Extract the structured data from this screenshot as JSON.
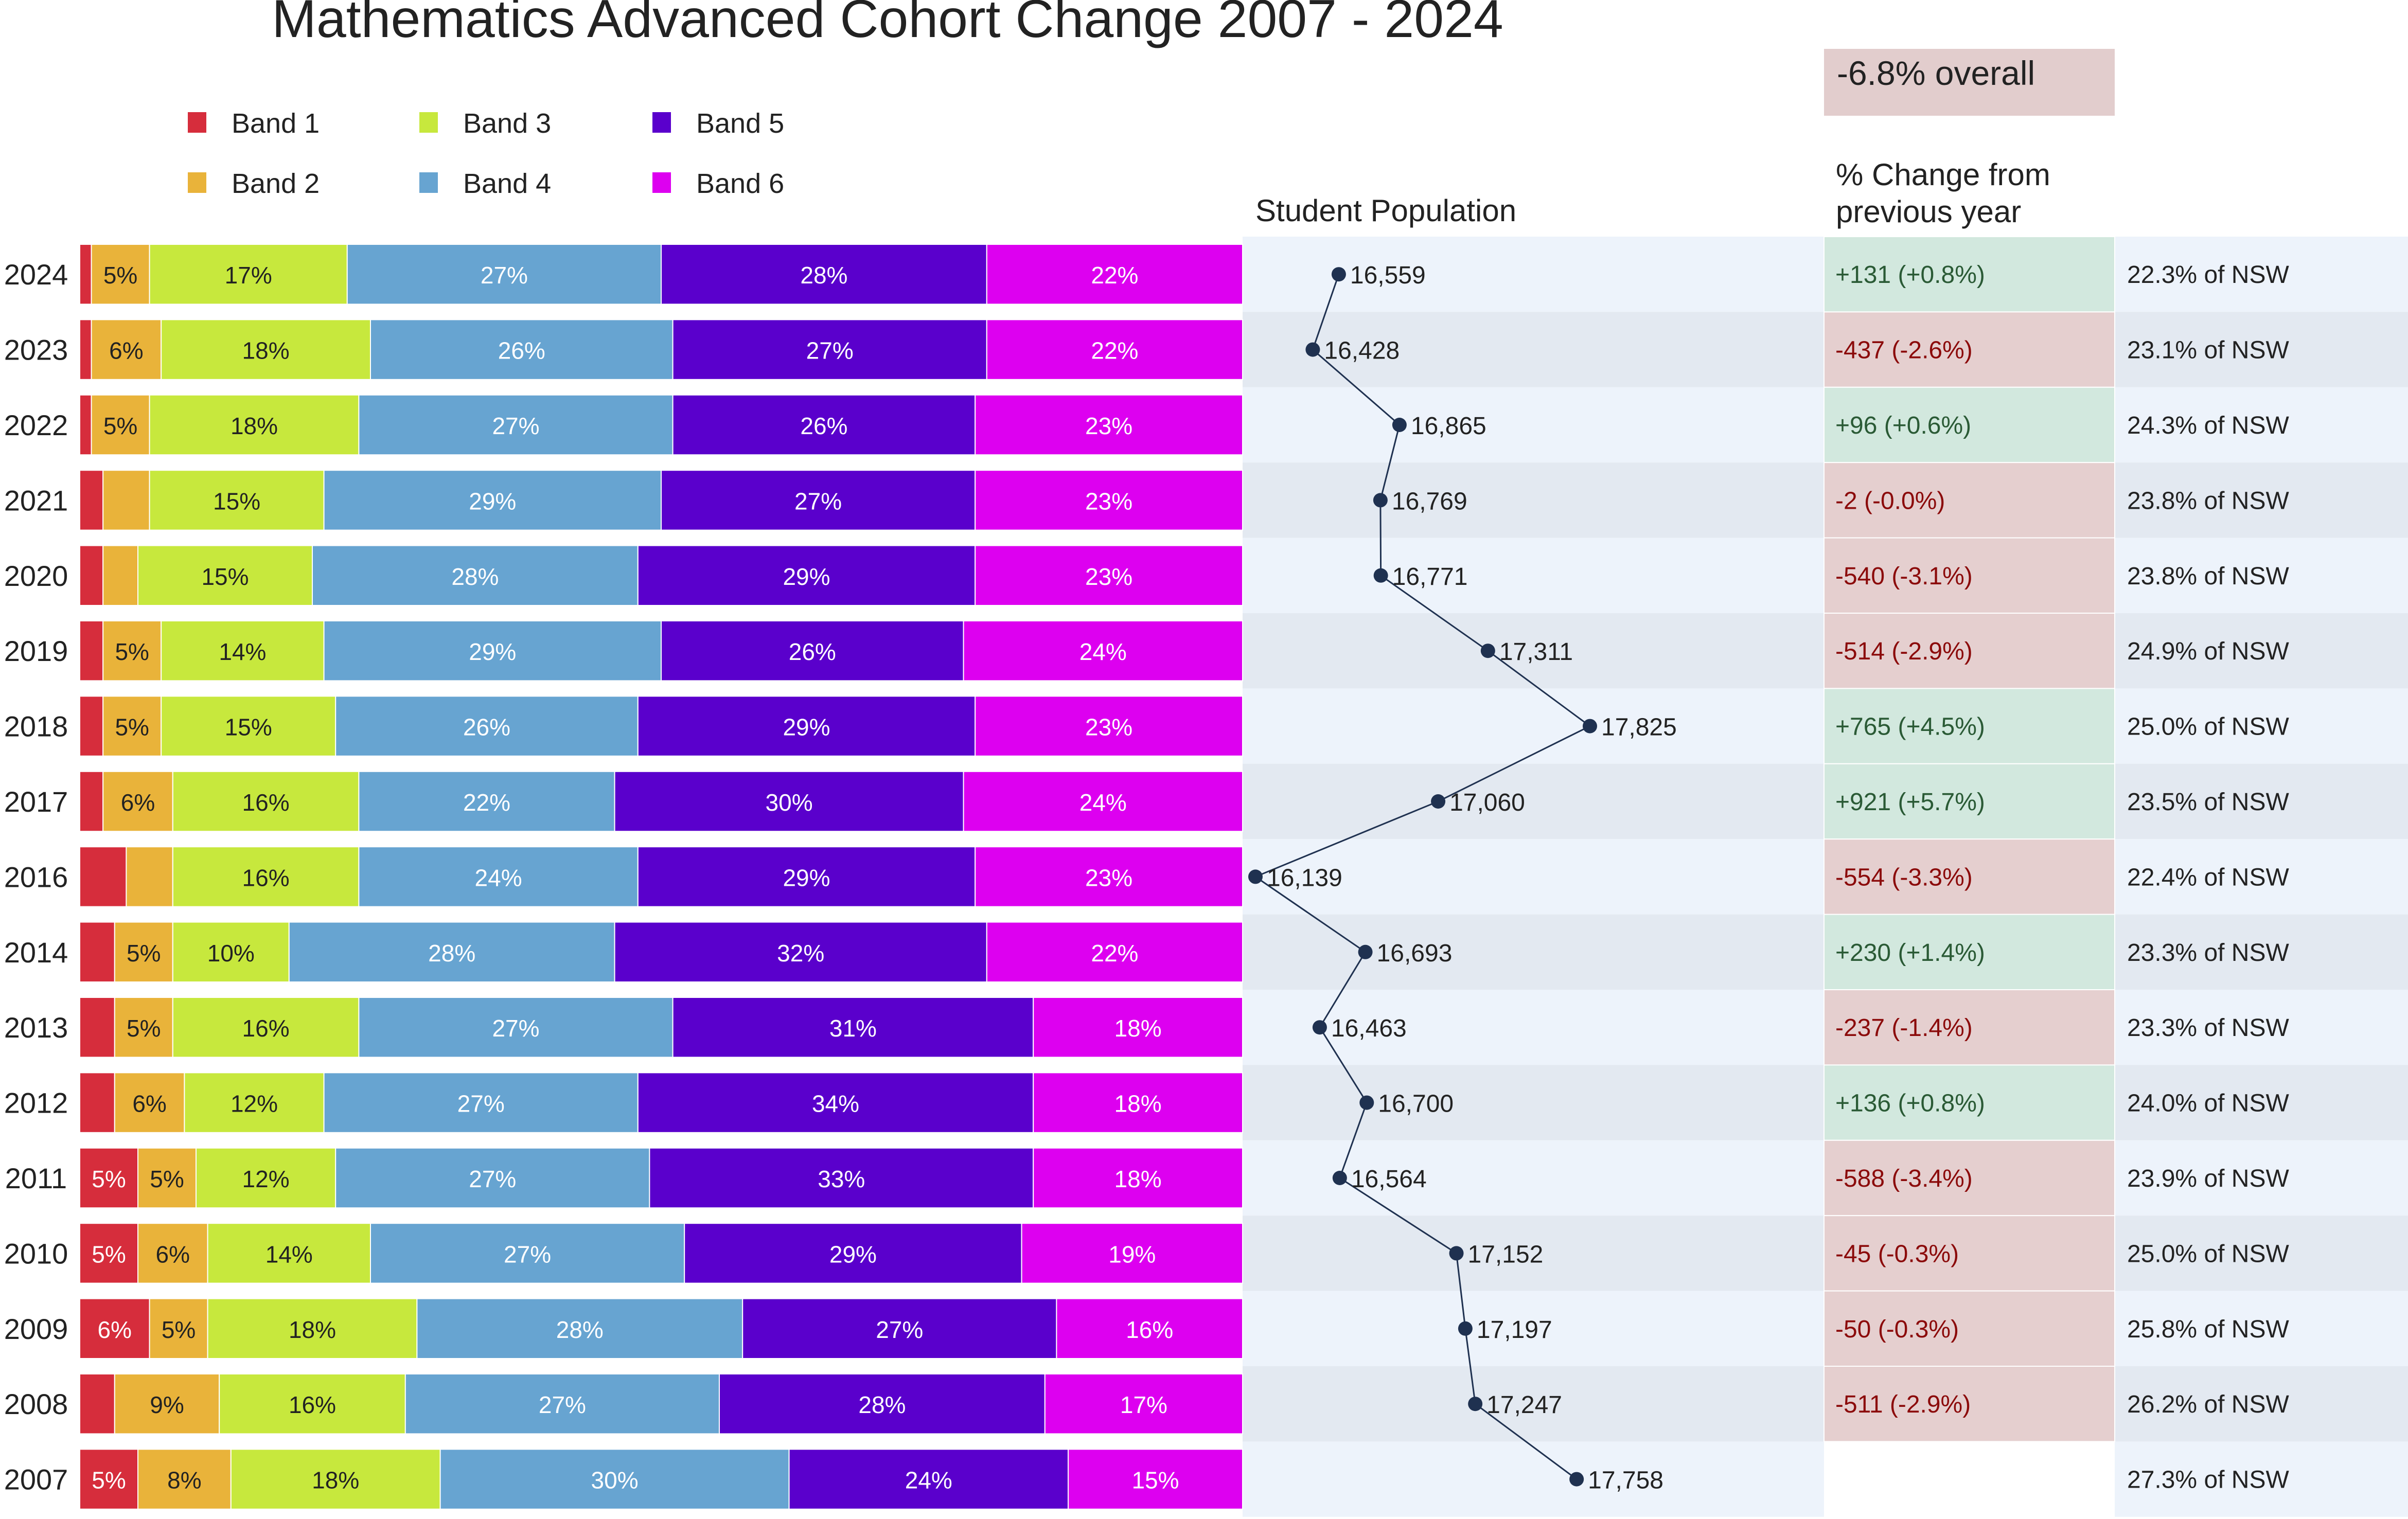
{
  "chart_data": {
    "type": "bar",
    "subtype": "stacked-horizontal-bar-with-line-and-tables",
    "title": "Mathematics Advanced Cohort Change 2007 - 2024",
    "overall_change": "-6.8% overall",
    "population_header": "Student Population",
    "change_header_line1": "% Change from",
    "change_header_line2": "previous year",
    "colors": {
      "band1": "#d62d3c",
      "band2": "#e9b33a",
      "band3": "#c7e83d",
      "band4": "#67a4d1",
      "band5": "#5a00cc",
      "band6": "#dd00f0",
      "positive_bg": "#d2e8de",
      "negative_bg": "#e5cfcf",
      "positive_text": "#2a5a35",
      "negative_text": "#8b0a0a",
      "row_light": "#edf3fb",
      "row_dark": "#e3e9f1",
      "line": "#1f3150",
      "overall_bg": "#e2cdcd"
    },
    "legend": [
      {
        "key": "band1",
        "label": "Band 1"
      },
      {
        "key": "band2",
        "label": "Band 2"
      },
      {
        "key": "band3",
        "label": "Band 3"
      },
      {
        "key": "band4",
        "label": "Band 4"
      },
      {
        "key": "band5",
        "label": "Band 5"
      },
      {
        "key": "band6",
        "label": "Band 6"
      }
    ],
    "bands": [
      "Band 1",
      "Band 2",
      "Band 3",
      "Band 4",
      "Band 5",
      "Band 6"
    ],
    "rows": [
      {
        "year": "2024",
        "bands": [
          1,
          5,
          17,
          27,
          28,
          22
        ],
        "population": 16559,
        "population_label": "16,559",
        "change": "+131  (+0.8%)",
        "change_sign": "positive",
        "nsw": "22.3% of NSW"
      },
      {
        "year": "2023",
        "bands": [
          1,
          6,
          18,
          26,
          27,
          22
        ],
        "population": 16428,
        "population_label": "16,428",
        "change": "-437  (-2.6%)",
        "change_sign": "negative",
        "nsw": "23.1% of NSW"
      },
      {
        "year": "2022",
        "bands": [
          1,
          5,
          18,
          27,
          26,
          23
        ],
        "population": 16865,
        "population_label": "16,865",
        "change": "+96  (+0.6%)",
        "change_sign": "positive",
        "nsw": "24.3% of NSW"
      },
      {
        "year": "2021",
        "bands": [
          2,
          4,
          15,
          29,
          27,
          23
        ],
        "population": 16769,
        "population_label": "16,769",
        "change": "-2  (-0.0%)",
        "change_sign": "negative",
        "nsw": "23.8% of NSW"
      },
      {
        "year": "2020",
        "bands": [
          2,
          3,
          15,
          28,
          29,
          23
        ],
        "population": 16771,
        "population_label": "16,771",
        "change": "-540  (-3.1%)",
        "change_sign": "negative",
        "nsw": "23.8% of NSW"
      },
      {
        "year": "2019",
        "bands": [
          2,
          5,
          14,
          29,
          26,
          24
        ],
        "population": 17311,
        "population_label": "17,311",
        "change": "-514  (-2.9%)",
        "change_sign": "negative",
        "nsw": "24.9% of NSW"
      },
      {
        "year": "2018",
        "bands": [
          2,
          5,
          15,
          26,
          29,
          23
        ],
        "population": 17825,
        "population_label": "17,825",
        "change": "+765  (+4.5%)",
        "change_sign": "positive",
        "nsw": "25.0% of NSW"
      },
      {
        "year": "2017",
        "bands": [
          2,
          6,
          16,
          22,
          30,
          24
        ],
        "population": 17060,
        "population_label": "17,060",
        "change": "+921  (+5.7%)",
        "change_sign": "positive",
        "nsw": "23.5% of NSW"
      },
      {
        "year": "2016",
        "bands": [
          4,
          4,
          16,
          24,
          29,
          23
        ],
        "population": 16139,
        "population_label": "16,139",
        "change": "-554  (-3.3%)",
        "change_sign": "negative",
        "nsw": "22.4% of NSW"
      },
      {
        "year": "2014",
        "bands": [
          3,
          5,
          10,
          28,
          32,
          22
        ],
        "population": 16693,
        "population_label": "16,693",
        "change": "+230  (+1.4%)",
        "change_sign": "positive",
        "nsw": "23.3% of NSW"
      },
      {
        "year": "2013",
        "bands": [
          3,
          5,
          16,
          27,
          31,
          18
        ],
        "population": 16463,
        "population_label": "16,463",
        "change": "-237  (-1.4%)",
        "change_sign": "negative",
        "nsw": "23.3% of NSW"
      },
      {
        "year": "2012",
        "bands": [
          3,
          6,
          12,
          27,
          34,
          18
        ],
        "population": 16700,
        "population_label": "16,700",
        "change": "+136  (+0.8%)",
        "change_sign": "positive",
        "nsw": "24.0% of NSW"
      },
      {
        "year": "2011",
        "bands": [
          5,
          5,
          12,
          27,
          33,
          18
        ],
        "population": 16564,
        "population_label": "16,564",
        "change": "-588  (-3.4%)",
        "change_sign": "negative",
        "nsw": "23.9% of NSW"
      },
      {
        "year": "2010",
        "bands": [
          5,
          6,
          14,
          27,
          29,
          19
        ],
        "population": 17152,
        "population_label": "17,152",
        "change": "-45  (-0.3%)",
        "change_sign": "negative",
        "nsw": "25.0% of NSW"
      },
      {
        "year": "2009",
        "bands": [
          6,
          5,
          18,
          28,
          27,
          16
        ],
        "population": 17197,
        "population_label": "17,197",
        "change": "-50  (-0.3%)",
        "change_sign": "negative",
        "nsw": "25.8% of NSW"
      },
      {
        "year": "2008",
        "bands": [
          3,
          9,
          16,
          27,
          28,
          17
        ],
        "population": 17247,
        "population_label": "17,247",
        "change": "-511  (-2.9%)",
        "change_sign": "negative",
        "nsw": "26.2% of NSW"
      },
      {
        "year": "2007",
        "bands": [
          5,
          8,
          18,
          30,
          24,
          15
        ],
        "population": 17758,
        "population_label": "17,758",
        "change": "",
        "change_sign": "none",
        "nsw": "27.3% of NSW"
      }
    ],
    "population_range": [
      16139,
      17825
    ],
    "label_threshold_pct": 5
  }
}
